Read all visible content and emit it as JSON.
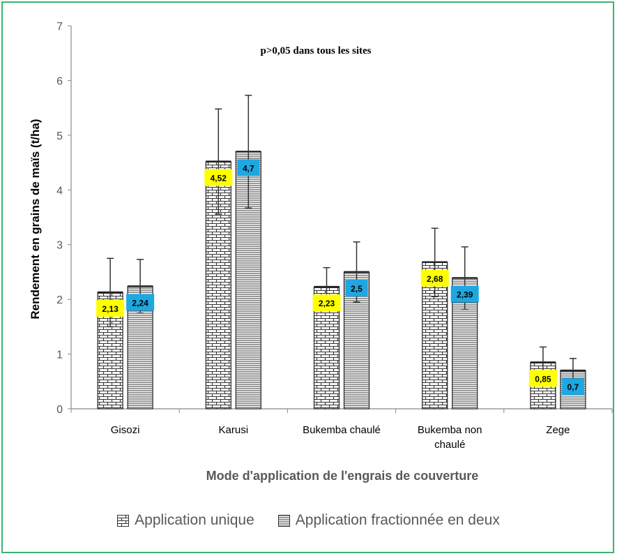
{
  "chart_data": {
    "type": "bar",
    "title": "p>0,05 dans tous les sites",
    "xlabel": "Mode d'application de l'engrais de couverture",
    "ylabel": "Rendement en grains de maïs (t/ha)",
    "ylim": [
      0,
      7
    ],
    "yticks": [
      "0",
      "1",
      "2",
      "3",
      "4",
      "5",
      "6",
      "7"
    ],
    "grid": false,
    "legend_position": "bottom",
    "categories": [
      "Gisozi",
      "Karusi",
      "Bukemba chaulé",
      "Bukemba non chaulé",
      "Zege"
    ],
    "category_lines": [
      [
        "Gisozi"
      ],
      [
        "Karusi"
      ],
      [
        "Bukemba chaulé"
      ],
      [
        "Bukemba non",
        "chaulé"
      ],
      [
        "Zege"
      ]
    ],
    "series": [
      {
        "name": "Application unique",
        "values": [
          2.13,
          4.52,
          2.23,
          2.68,
          0.85
        ],
        "labels": [
          "2,13",
          "4,52",
          "2,23",
          "2,68",
          "0,85"
        ],
        "error_upper": [
          2.75,
          5.48,
          2.58,
          3.3,
          1.13
        ],
        "error_lower": [
          1.5,
          3.56,
          1.88,
          2.05,
          0.57
        ],
        "pattern": "brick",
        "label_color": "#ffff00"
      },
      {
        "name": "Application fractionnée en deux",
        "values": [
          2.24,
          4.7,
          2.5,
          2.39,
          0.7
        ],
        "labels": [
          "2,24",
          "4,7",
          "2,5",
          "2,39",
          "0,7"
        ],
        "error_upper": [
          2.73,
          5.73,
          3.05,
          2.96,
          0.92
        ],
        "error_lower": [
          1.75,
          3.67,
          1.95,
          1.82,
          0.48
        ],
        "pattern": "horizontal",
        "label_color": "#1ea7e1"
      }
    ]
  }
}
